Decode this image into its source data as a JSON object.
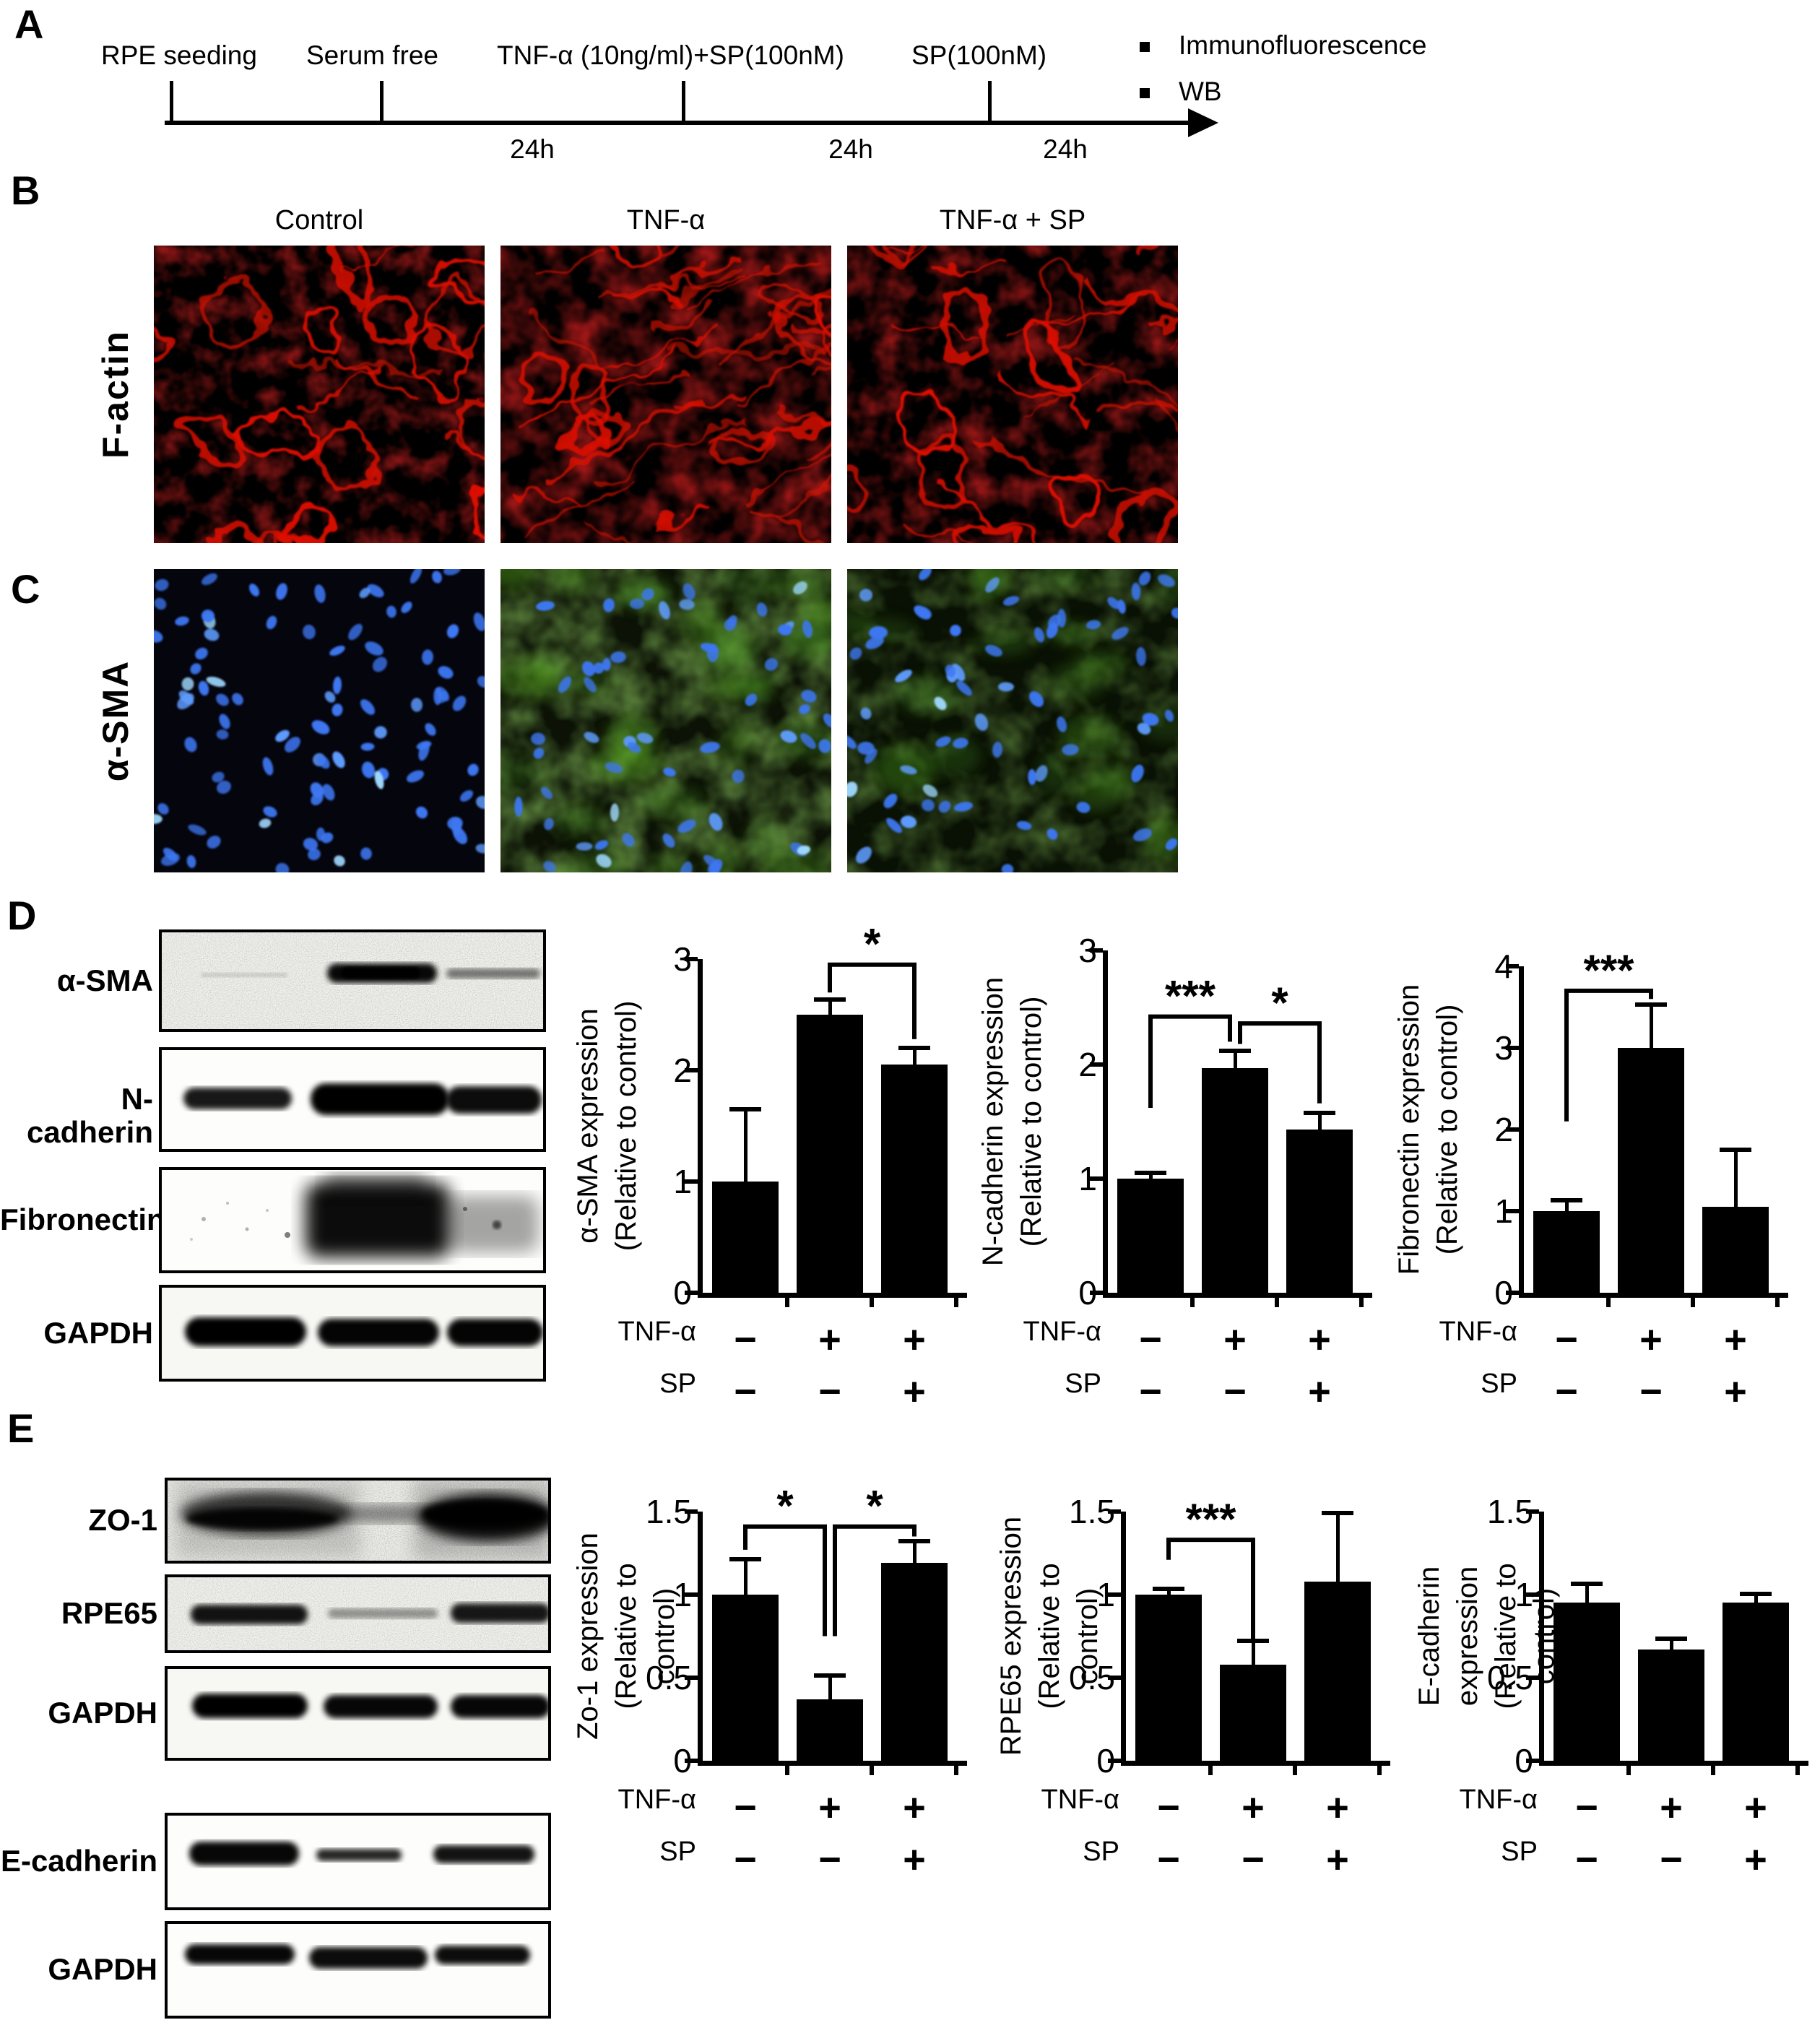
{
  "colors": {
    "background": "#ffffff",
    "ink": "#000000",
    "factin_red": "#e01000",
    "nuclei_blue": "#3d77f2",
    "sma_green": "#4f9f1e"
  },
  "panel_a": {
    "label": "A",
    "events": [
      {
        "text": "RPE seeding"
      },
      {
        "text": "Serum free"
      },
      {
        "text": "TNF-α (10ng/ml)+SP(100nM)"
      },
      {
        "text": "SP(100nM)"
      }
    ],
    "intervals": [
      "24h",
      "24h",
      "24h"
    ],
    "endpoints": [
      "Immunofluorescence",
      "WB"
    ]
  },
  "panel_b": {
    "label": "B",
    "row_label": "F-actin",
    "columns": [
      "Control",
      "TNF-α",
      "TNF-α + SP"
    ]
  },
  "panel_c": {
    "label": "C",
    "row_label": "α-SMA"
  },
  "panel_d": {
    "label": "D",
    "blot_labels": [
      "α-SMA",
      "N-cadherin",
      "Fibronectin",
      "GAPDH"
    ]
  },
  "panel_e": {
    "label": "E",
    "blot_labels": [
      "ZO-1",
      "RPE65",
      "GAPDH",
      "E-cadherin",
      "GAPDH"
    ]
  },
  "chart_data": [
    {
      "type": "bar",
      "panel": "D",
      "ylabel": [
        "α-SMA expression",
        "(Relative to control)"
      ],
      "ylim": [
        0,
        3
      ],
      "yticks": [
        0,
        1,
        2,
        3
      ],
      "values": [
        1.0,
        2.5,
        2.05
      ],
      "errors": [
        0.63,
        0.12,
        0.13
      ],
      "conditions": [
        {
          "label": "TNF-α",
          "signs": [
            "−",
            "+",
            "+"
          ]
        },
        {
          "label": "SP",
          "signs": [
            "−",
            "−",
            "+"
          ]
        }
      ],
      "significance": [
        {
          "a": 1,
          "b": 2,
          "label": "*",
          "y": 2.95,
          "a_end": 2.7,
          "b_end": 2.28
        }
      ]
    },
    {
      "type": "bar",
      "panel": "D",
      "ylabel": [
        "N-cadherin expression",
        "(Relative to control)"
      ],
      "ylim": [
        0,
        3
      ],
      "yticks": [
        0,
        1,
        2,
        3
      ],
      "values": [
        1.0,
        1.97,
        1.43
      ],
      "errors": [
        0.03,
        0.13,
        0.13
      ],
      "conditions": [
        {
          "label": "TNF-α",
          "signs": [
            "−",
            "+",
            "+"
          ]
        },
        {
          "label": "SP",
          "signs": [
            "−",
            "−",
            "+"
          ]
        }
      ],
      "significance": [
        {
          "a": 0,
          "b": 1,
          "label": "***",
          "y": 2.42,
          "a_end": 1.62,
          "b_end": 2.2,
          "b_off": -7
        },
        {
          "a": 1,
          "b": 2,
          "label": "*",
          "y": 2.36,
          "a_end": 2.18,
          "b_end": 1.66,
          "a_off": 7
        }
      ]
    },
    {
      "type": "bar",
      "panel": "D",
      "ylabel": [
        "Fibronectin expression",
        "(Relative to control)"
      ],
      "ylim": [
        0,
        4
      ],
      "yticks": [
        0,
        1,
        2,
        3,
        4
      ],
      "values": [
        1.0,
        3.0,
        1.05
      ],
      "errors": [
        0.11,
        0.5,
        0.68
      ],
      "conditions": [
        {
          "label": "TNF-α",
          "signs": [
            "−",
            "+",
            "+"
          ]
        },
        {
          "label": "SP",
          "signs": [
            "−",
            "−",
            "+"
          ]
        }
      ],
      "significance": [
        {
          "a": 0,
          "b": 1,
          "label": "***",
          "y": 3.7,
          "a_end": 2.1,
          "b_end": 3.6
        }
      ]
    },
    {
      "type": "bar",
      "panel": "E",
      "ylabel": [
        "Zo-1 expression",
        "(Relative to control)"
      ],
      "ylim": [
        0,
        1.5
      ],
      "yticks": [
        0,
        0.5,
        1,
        1.5
      ],
      "values": [
        1.0,
        0.37,
        1.19
      ],
      "errors": [
        0.2,
        0.13,
        0.12
      ],
      "conditions": [
        {
          "label": "TNF-α",
          "signs": [
            "−",
            "+",
            "+"
          ]
        },
        {
          "label": "SP",
          "signs": [
            "−",
            "−",
            "+"
          ]
        }
      ],
      "significance": [
        {
          "a": 0,
          "b": 1,
          "label": "*",
          "y": 1.41,
          "a_end": 1.27,
          "b_end": 0.75,
          "b_off": -7
        },
        {
          "a": 1,
          "b": 2,
          "label": "*",
          "y": 1.41,
          "a_end": 0.75,
          "b_end": 1.35,
          "a_off": 7
        }
      ]
    },
    {
      "type": "bar",
      "panel": "E",
      "ylabel": [
        "RPE65 expression",
        "(Relative to control)"
      ],
      "ylim": [
        0,
        1.5
      ],
      "yticks": [
        0,
        0.5,
        1,
        1.5
      ],
      "values": [
        1.0,
        0.58,
        1.08
      ],
      "errors": [
        0.02,
        0.13,
        0.4
      ],
      "conditions": [
        {
          "label": "TNF-α",
          "signs": [
            "−",
            "+",
            "+"
          ]
        },
        {
          "label": "SP",
          "signs": [
            "−",
            "−",
            "+"
          ]
        }
      ],
      "significance": [
        {
          "a": 0,
          "b": 1,
          "label": "***",
          "y": 1.33,
          "a_end": 1.21,
          "b_end": 0.73
        }
      ]
    },
    {
      "type": "bar",
      "panel": "E",
      "ylabel": [
        "E-cadherin expression",
        "(Relative to control)"
      ],
      "ylim": [
        0,
        1.5
      ],
      "yticks": [
        0,
        0.5,
        1,
        1.5
      ],
      "values": [
        0.95,
        0.67,
        0.95
      ],
      "errors": [
        0.1,
        0.05,
        0.04
      ],
      "conditions": [
        {
          "label": "TNF-α",
          "signs": [
            "−",
            "+",
            "+"
          ]
        },
        {
          "label": "SP",
          "signs": [
            "−",
            "−",
            "+"
          ]
        }
      ],
      "significance": []
    }
  ]
}
